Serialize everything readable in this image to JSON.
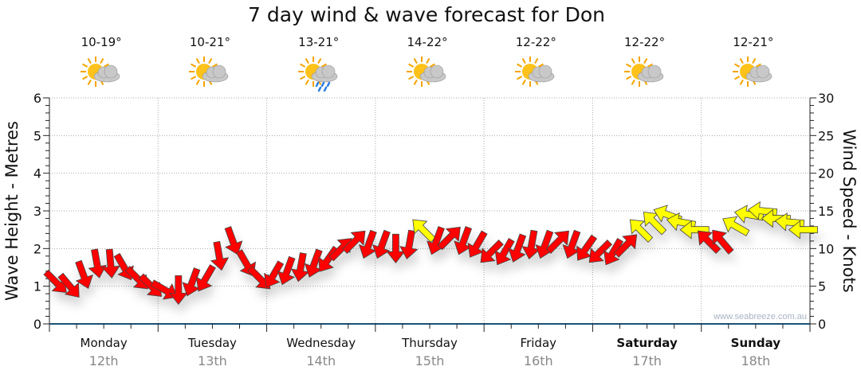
{
  "chart_data": {
    "type": "scatter",
    "title": "7 day wind & wave forecast for Don",
    "ylabel": "Wave Height - Metres",
    "y2label": "Wind Speed - Knots",
    "ylim": [
      0,
      6
    ],
    "y2lim": [
      0,
      30
    ],
    "yticks": [
      "0",
      "1",
      "2",
      "3",
      "4",
      "5",
      "6"
    ],
    "y2ticks": [
      "0",
      "5",
      "10",
      "15",
      "20",
      "25",
      "30"
    ],
    "watermark": "www.seabreeze.com.au",
    "days": [
      {
        "day": "Monday",
        "date": "12th",
        "temp": "10-19°",
        "icon": "sun-cloud-icon",
        "weekend": false
      },
      {
        "day": "Tuesday",
        "date": "13th",
        "temp": "10-21°",
        "icon": "sun-cloud-icon",
        "weekend": false
      },
      {
        "day": "Wednesday",
        "date": "14th",
        "temp": "13-21°",
        "icon": "sun-cloud-rain-icon",
        "weekend": false
      },
      {
        "day": "Thursday",
        "date": "15th",
        "temp": "14-22°",
        "icon": "sun-cloud-icon",
        "weekend": false
      },
      {
        "day": "Friday",
        "date": "16th",
        "temp": "12-22°",
        "icon": "sun-cloud-icon",
        "weekend": false
      },
      {
        "day": "Saturday",
        "date": "17th",
        "temp": "12-22°",
        "icon": "sun-cloud-icon",
        "weekend": true
      },
      {
        "day": "Sunday",
        "date": "18th",
        "temp": "12-21°",
        "icon": "sun-cloud-icon",
        "weekend": true
      }
    ],
    "wind": {
      "interval_hours": 3,
      "speed_knots": [
        5.5,
        5,
        6.5,
        8,
        8,
        7.5,
        6,
        5,
        4.5,
        4.5,
        5.5,
        6,
        9,
        11,
        8,
        6,
        6.5,
        7,
        7.5,
        8,
        8.5,
        10,
        11,
        10.5,
        10.5,
        10,
        10.5,
        12.5,
        11,
        11.5,
        11,
        10.5,
        9.5,
        9.5,
        10,
        10.5,
        10.5,
        11,
        10.5,
        10,
        9.5,
        9.5,
        10.5,
        12.5,
        13.5,
        14.5,
        13.5,
        12.5,
        11,
        11,
        13,
        14.5,
        15,
        14,
        13.5,
        12.5
      ],
      "direction_deg": [
        135,
        140,
        160,
        170,
        175,
        150,
        135,
        135,
        120,
        180,
        200,
        210,
        170,
        160,
        150,
        135,
        210,
        200,
        190,
        200,
        215,
        45,
        45,
        200,
        200,
        180,
        190,
        315,
        200,
        45,
        200,
        210,
        225,
        210,
        200,
        190,
        200,
        45,
        200,
        215,
        225,
        210,
        45,
        315,
        315,
        290,
        280,
        270,
        315,
        320,
        300,
        280,
        275,
        270,
        275,
        270
      ],
      "colors": {
        "light": "#ff0000",
        "strong": "#ffff00"
      },
      "strong_threshold_knots": 12
    }
  }
}
